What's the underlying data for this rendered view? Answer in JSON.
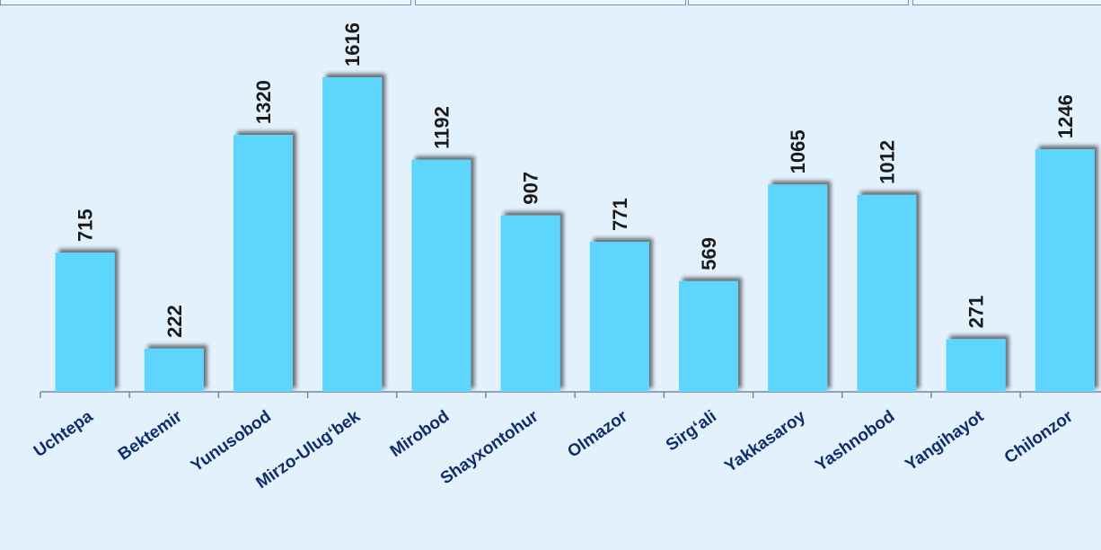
{
  "chart_data": {
    "type": "bar",
    "categories": [
      "Uchtepa",
      "Bektemir",
      "Yunusobod",
      "Mirzo-Ulug‘bek",
      "Mirobod",
      "Shayxontohur",
      "Olmazor",
      "Sirg‘ali",
      "Yakkasaroy",
      "Yashnobod",
      "Yangihayot",
      "Chilonzor"
    ],
    "values": [
      715,
      222,
      1320,
      1616,
      1192,
      907,
      771,
      569,
      1065,
      1012,
      271,
      1246
    ],
    "title": "",
    "xlabel": "",
    "ylabel": "",
    "ylim": [
      0,
      1800
    ],
    "grid": false,
    "legend": "none",
    "data_labels": true,
    "colors": {
      "bar": "#5dd5fd",
      "bar_shadow": "#7f8a93",
      "label": "#1a1a1a",
      "category_label": "#0f2d6a",
      "axis": "#7a8894",
      "background": "#e3f1fc"
    }
  }
}
